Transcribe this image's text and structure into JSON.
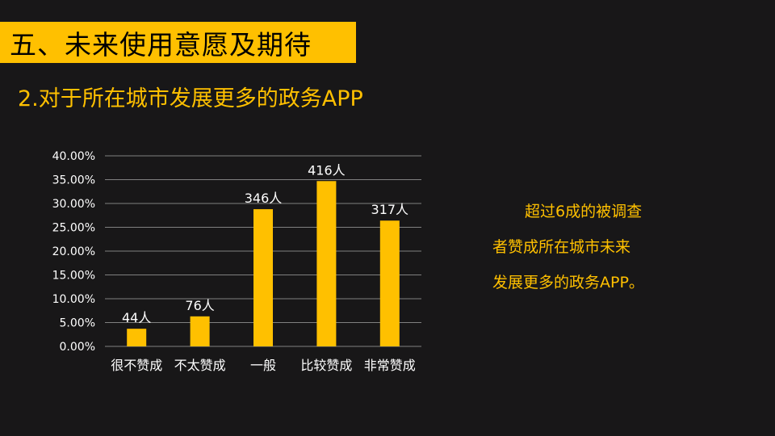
{
  "header": {
    "title": "五、未来使用意愿及期待",
    "subtitle": "2.对于所在城市发展更多的政务APP"
  },
  "note": {
    "lines": [
      "超过6成的被调查",
      "者赞成所在城市未来",
      "发展更多的政务APP。"
    ]
  },
  "colors": {
    "background": "#181718",
    "accent": "#FFC000",
    "bar": "#FFC000",
    "grid": "#808080",
    "text": "#FFFFFF"
  },
  "chart_data": {
    "type": "bar",
    "categories": [
      "很不赞成",
      "不太赞成",
      "一般",
      "比较赞成",
      "非常赞成"
    ],
    "values": [
      3.7,
      6.3,
      28.8,
      34.7,
      26.4
    ],
    "data_labels": [
      "44人",
      "76人",
      "346人",
      "416人",
      "317人"
    ],
    "yticks": [
      "0.00%",
      "5.00%",
      "10.00%",
      "15.00%",
      "20.00%",
      "25.00%",
      "30.00%",
      "35.00%",
      "40.00%"
    ],
    "ylim": [
      0,
      40
    ],
    "grid": true,
    "legend": "none"
  }
}
